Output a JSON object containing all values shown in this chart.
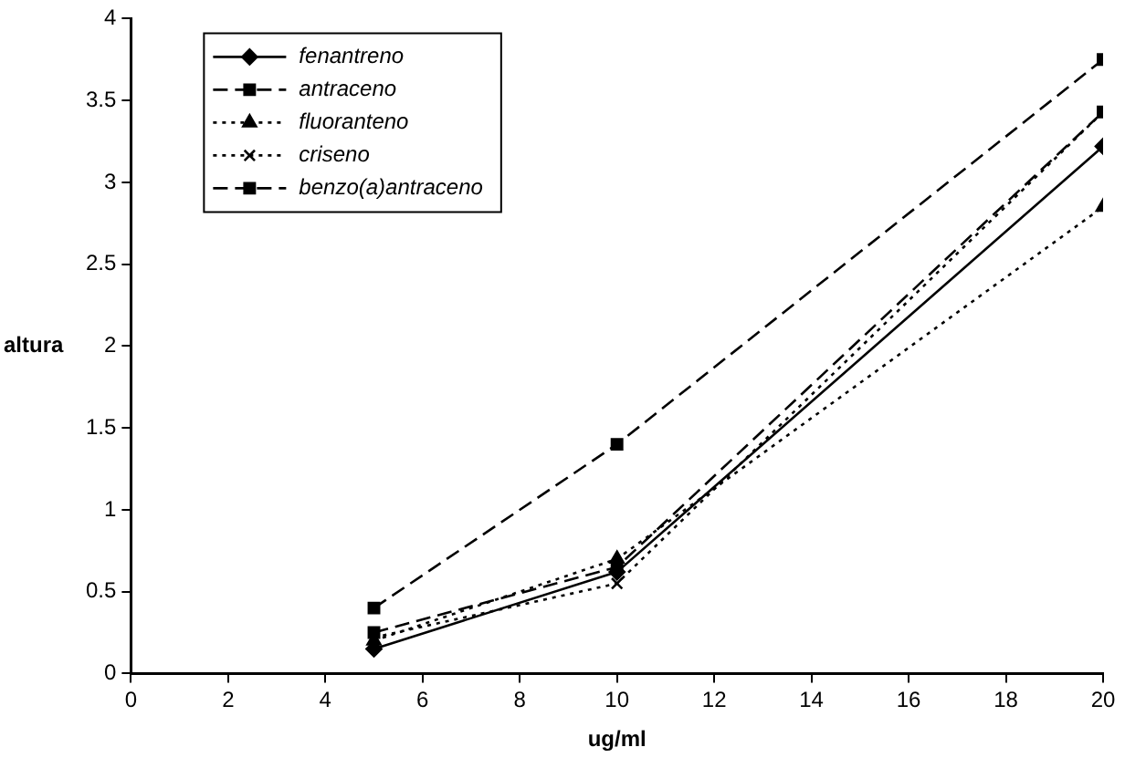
{
  "chart_data": {
    "type": "line",
    "xlabel": "ug/ml",
    "ylabel": "altura",
    "x": [
      5,
      10,
      20
    ],
    "series": [
      {
        "name": "fenantreno",
        "color": "#000000",
        "values": [
          0.15,
          0.62,
          3.22
        ],
        "marker": "diamond",
        "line_style": "solid"
      },
      {
        "name": "antraceno",
        "color": "#000000",
        "values": [
          0.4,
          1.4,
          3.75
        ],
        "marker": "square",
        "line_style": "dashed"
      },
      {
        "name": "fluoranteno",
        "color": "#000000",
        "values": [
          0.2,
          0.7,
          2.85
        ],
        "marker": "triangle",
        "line_style": "dotted"
      },
      {
        "name": "criseno",
        "color": "#000000",
        "values": [
          0.22,
          0.55,
          3.43
        ],
        "marker": "cross",
        "line_style": "dotted"
      },
      {
        "name": "benzo(a)antraceno",
        "color": "#000000",
        "values": [
          0.25,
          0.65,
          3.43
        ],
        "marker": "square",
        "line_style": "dashed"
      }
    ],
    "xlim": [
      0,
      20
    ],
    "xticks": [
      0,
      2,
      4,
      6,
      8,
      10,
      12,
      14,
      16,
      18,
      20
    ],
    "ylim": [
      0,
      4
    ],
    "yticks": [
      0,
      0.5,
      1,
      1.5,
      2,
      2.5,
      3,
      3.5,
      4
    ],
    "grid": false,
    "legend": "top left"
  }
}
